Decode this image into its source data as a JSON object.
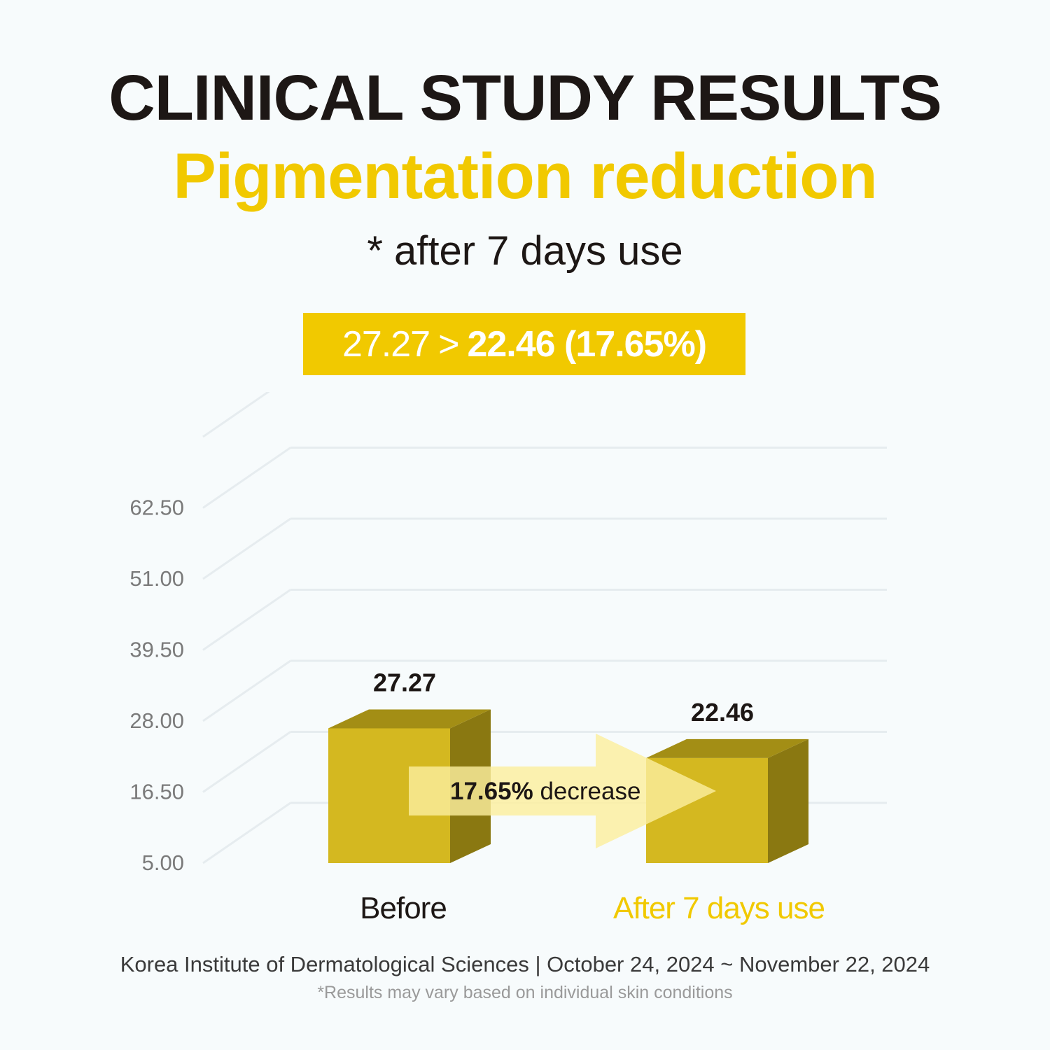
{
  "header": {
    "title": "CLINICAL STUDY RESULTS",
    "subtitle": "Pigmentation reduction",
    "note": "* after 7 days use"
  },
  "result": {
    "before": "27.27",
    "arrow": ">",
    "after_text": "22.46 (17.65%)"
  },
  "chart_data": {
    "type": "bar",
    "categories": [
      "Before",
      "After 7 days use"
    ],
    "values": [
      27.27,
      22.46
    ],
    "value_labels": [
      "27.27",
      "22.46"
    ],
    "yticks": [
      5.0,
      16.5,
      28.0,
      39.5,
      51.0,
      62.5
    ],
    "ytick_labels": [
      "5.00",
      "16.50",
      "28.00",
      "39.50",
      "51.00",
      "62.50"
    ],
    "ylim": [
      5.0,
      62.5
    ],
    "annotation": {
      "bold": "17.65%",
      "text": " decrease"
    },
    "title": "",
    "xlabel": "",
    "ylabel": ""
  },
  "footer": {
    "source": "Korea Institute of Dermatological Sciences | October 24, 2024 ~ November 22, 2024",
    "disclaimer": "*Results may vary based on individual skin conditions"
  },
  "colors": {
    "accent": "#f1c900",
    "bar_front": "#d4b820",
    "bar_top": "#a38e15",
    "bar_side": "#8a7811",
    "arrow": "#fbee9e",
    "grid": "#e6ecef",
    "text_dark": "#1d1715",
    "tick_text": "#7a7a7a",
    "after_label": "#f1c900"
  }
}
